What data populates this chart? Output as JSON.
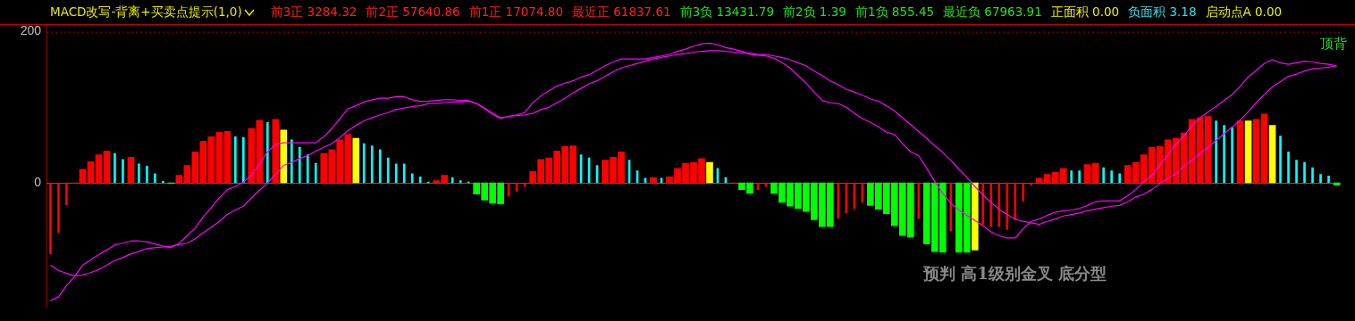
{
  "chart_data": {
    "type": "bar",
    "title": "MACD改写-背离+买卖点提示(1,0)",
    "annotations": [
      "前3正 3284.32",
      "前2正 57640.86",
      "前1正 17074.80",
      "最近正 61837.61",
      "前3负 13431.79",
      "前2负 1.39",
      "前1负 855.45",
      "最近负 67963.91",
      "正面积 0.00",
      "负面积 3.18",
      "启动点A 0.00",
      "顶背",
      "预判 高1级别金叉 底分型"
    ],
    "categories": [
      null,
      null,
      null,
      null,
      null,
      null,
      null,
      null,
      null,
      null,
      null,
      null,
      null,
      null,
      null,
      null,
      null,
      null,
      null,
      null,
      null,
      null,
      null,
      null,
      null,
      null,
      null,
      null,
      null,
      null,
      null,
      null,
      null,
      null,
      null,
      null,
      null,
      null,
      null,
      null,
      null,
      null,
      null,
      null,
      null,
      null,
      null,
      null,
      null,
      null,
      null,
      null,
      null,
      null,
      null,
      null,
      null,
      null,
      null,
      null,
      null,
      null,
      null,
      null,
      null,
      null,
      null,
      null,
      null,
      null,
      null,
      null,
      null,
      null,
      null,
      null,
      null,
      null,
      null,
      null,
      null,
      null,
      null,
      null,
      null,
      null,
      null,
      null,
      null,
      null,
      null,
      null,
      null,
      null,
      null,
      null,
      null,
      null,
      null,
      null,
      null,
      null,
      null,
      null,
      null,
      null,
      null,
      null,
      null,
      null,
      null,
      null,
      null,
      null,
      null,
      null,
      null,
      null,
      null,
      null,
      null,
      null,
      null,
      null,
      null,
      null,
      null,
      null,
      null,
      null,
      null,
      null,
      null,
      null,
      null,
      null,
      null,
      null,
      null,
      null,
      null,
      null,
      null,
      null,
      null,
      null,
      null,
      null,
      null,
      null,
      null,
      null,
      null,
      null,
      null,
      null,
      null,
      null,
      null,
      null,
      null
    ],
    "series": [
      {
        "values": [
          -94,
          -66,
          -29,
          0,
          18,
          28,
          37,
          42,
          39,
          31,
          34,
          25,
          22,
          12,
          2,
          -1,
          10,
          23,
          41,
          55,
          61,
          67,
          68,
          61,
          60,
          72,
          83,
          80,
          84,
          70,
          57,
          47,
          37,
          26,
          39,
          44,
          57,
          64,
          59,
          52,
          49,
          44,
          33,
          25,
          25,
          12,
          8,
          1,
          3,
          10,
          7,
          3,
          1,
          -15,
          -23,
          -27,
          -28,
          -18,
          -11,
          -5,
          15,
          31,
          33,
          42,
          48,
          49,
          37,
          33,
          23,
          30,
          34,
          41,
          30,
          16,
          6,
          7,
          6,
          8,
          19,
          26,
          27,
          32,
          27,
          19,
          7,
          0,
          -9,
          -14,
          -9,
          -5,
          -14,
          -26,
          -31,
          -34,
          -38,
          -49,
          -58,
          -58,
          -47,
          -40,
          -34,
          -26,
          -30,
          -35,
          -41,
          -57,
          -70,
          -72,
          -47,
          -81,
          -91,
          -92,
          -64,
          -92,
          -92,
          -89,
          -55,
          -58,
          -58,
          -62,
          -49,
          -24,
          -3,
          6,
          11,
          14,
          19,
          16,
          16,
          24,
          26,
          20,
          16,
          12,
          23,
          27,
          37,
          47,
          48,
          57,
          59,
          66,
          84,
          86,
          88,
          82,
          76,
          73,
          82,
          82,
          84,
          91,
          76,
          62,
          41,
          30,
          27,
          20,
          11,
          9,
          -3
        ],
        "colors": [
          "#ff0000",
          "#ff0000",
          "#ff0000",
          "#ff0000",
          "#ff0000",
          "#ff0000",
          "#ff0000",
          "#ff0000",
          "#00ffff",
          "#00ffff",
          "#ff0000",
          "#00ffff",
          "#00ffff",
          "#00ffff",
          "#00ffff",
          "#00ff00",
          "#ff0000",
          "#ff0000",
          "#ff0000",
          "#ff0000",
          "#ff0000",
          "#ff0000",
          "#ff0000",
          "#00ffff",
          "#00ffff",
          "#ff0000",
          "#ff0000",
          "#00ffff",
          "#ff0000",
          "#ffff00",
          "#00ffff",
          "#00ffff",
          "#00ffff",
          "#00ffff",
          "#ff0000",
          "#ff0000",
          "#ff0000",
          "#ff0000",
          "#ffff00",
          "#00ffff",
          "#00ffff",
          "#00ffff",
          "#00ffff",
          "#00ffff",
          "#00ffff",
          "#00ffff",
          "#00ffff",
          "#00ffff",
          "#ff0000",
          "#ff0000",
          "#00ffff",
          "#00ffff",
          "#00ffff",
          "#00ff00",
          "#00ff00",
          "#00ff00",
          "#00ff00",
          "#ff0000",
          "#ff0000",
          "#ff0000",
          "#ff0000",
          "#ff0000",
          "#ff0000",
          "#ff0000",
          "#ff0000",
          "#ff0000",
          "#00ffff",
          "#00ffff",
          "#00ffff",
          "#ff0000",
          "#ff0000",
          "#ff0000",
          "#00ffff",
          "#00ffff",
          "#00ffff",
          "#ff0000",
          "#00ffff",
          "#ff0000",
          "#ff0000",
          "#ff0000",
          "#ff0000",
          "#ff0000",
          "#ffff00",
          "#00ffff",
          "#00ffff",
          "#ff0000",
          "#00ff00",
          "#00ff00",
          "#ff0000",
          "#ff0000",
          "#00ff00",
          "#00ff00",
          "#00ff00",
          "#00ff00",
          "#00ff00",
          "#00ff00",
          "#00ff00",
          "#00ff00",
          "#ff0000",
          "#ff0000",
          "#ff0000",
          "#ff0000",
          "#00ff00",
          "#00ff00",
          "#00ff00",
          "#00ff00",
          "#00ff00",
          "#00ff00",
          "#ff0000",
          "#00ff00",
          "#00ff00",
          "#00ff00",
          "#ff0000",
          "#00ff00",
          "#00ff00",
          "#ffff00",
          "#ff0000",
          "#ff0000",
          "#ff0000",
          "#ff0000",
          "#ff0000",
          "#ff0000",
          "#ff0000",
          "#ff0000",
          "#ff0000",
          "#ff0000",
          "#ff0000",
          "#00ffff",
          "#00ffff",
          "#ff0000",
          "#ff0000",
          "#00ffff",
          "#00ffff",
          "#00ffff",
          "#ff0000",
          "#ff0000",
          "#ff0000",
          "#ff0000",
          "#ff0000",
          "#ff0000",
          "#ff0000",
          "#ff0000",
          "#ff0000",
          "#ff0000",
          "#ff0000",
          "#00ffff",
          "#00ffff",
          "#00ffff",
          "#ff0000",
          "#ffff00",
          "#ff0000",
          "#ff0000",
          "#ffff00",
          "#00ffff",
          "#00ffff",
          "#00ffff",
          "#00ffff",
          "#00ffff",
          "#00ffff",
          "#00ffff",
          "#00ff00"
        ]
      },
      {
        "type": "line",
        "color": "#ff00ff",
        "values": [
          -156,
          -151,
          -136,
          -124,
          -109,
          -102,
          -95,
          -89,
          -82,
          -80,
          -77,
          -77,
          -78,
          -81,
          -84,
          -86,
          -80,
          -70,
          -60,
          -45,
          -33,
          -20,
          -9,
          -5,
          1,
          10,
          25,
          41,
          51,
          53,
          53,
          53,
          53,
          53,
          61,
          72,
          85,
          98,
          102,
          107,
          110,
          112,
          112,
          114,
          114,
          110,
          108,
          108,
          109,
          110,
          110,
          109,
          109,
          105,
          98,
          91,
          85,
          88,
          90,
          93,
          106,
          115,
          122,
          128,
          132,
          135,
          140,
          143,
          149,
          155,
          160,
          164,
          164,
          164,
          164,
          166,
          168,
          170,
          174,
          177,
          181,
          184,
          185,
          183,
          179,
          177,
          174,
          170,
          169,
          168,
          165,
          159,
          152,
          142,
          132,
          120,
          109,
          106,
          105,
          100,
          92,
          85,
          80,
          74,
          67,
          64,
          52,
          41,
          36,
          19,
          2,
          -14,
          -27,
          -36,
          -43,
          -50,
          -57,
          -65,
          -70,
          -73,
          -73,
          -61,
          -51,
          -48,
          -43,
          -39,
          -37,
          -36,
          -34,
          -30,
          -25,
          -24,
          -24,
          -24,
          -17,
          -9,
          1,
          10,
          24,
          37,
          51,
          62,
          76,
          86,
          94,
          101,
          109,
          117,
          128,
          140,
          149,
          158,
          163,
          159,
          157,
          159,
          161,
          160,
          158,
          157,
          155
        ]
      },
      {
        "type": "line",
        "color": "#ff00ff",
        "values": [
          -109,
          -116,
          -120,
          -123,
          -122,
          -119,
          -115,
          -109,
          -103,
          -99,
          -94,
          -91,
          -87,
          -86,
          -85,
          -84,
          -82,
          -80,
          -74,
          -66,
          -59,
          -51,
          -42,
          -36,
          -31,
          -20,
          -10,
          0,
          11,
          23,
          27,
          32,
          36,
          42,
          47,
          52,
          60,
          69,
          76,
          82,
          86,
          90,
          93,
          97,
          99,
          101,
          102,
          105,
          105,
          106,
          107,
          107,
          108,
          105,
          99,
          92,
          86,
          88,
          89,
          90,
          92,
          97,
          100,
          106,
          112,
          119,
          125,
          131,
          135,
          141,
          147,
          152,
          155,
          158,
          161,
          164,
          166,
          168,
          170,
          171,
          173,
          174,
          175,
          175,
          174,
          173,
          172,
          172,
          170,
          170,
          168,
          166,
          163,
          159,
          155,
          148,
          142,
          135,
          130,
          124,
          120,
          116,
          111,
          108,
          102,
          95,
          86,
          77,
          68,
          59,
          49,
          40,
          30,
          18,
          7,
          -5,
          -16,
          -26,
          -35,
          -42,
          -48,
          -51,
          -53,
          -55,
          -51,
          -48,
          -44,
          -42,
          -40,
          -37,
          -35,
          -33,
          -31,
          -30,
          -25,
          -19,
          -15,
          -9,
          -1,
          6,
          12,
          22,
          30,
          39,
          47,
          56,
          65,
          74,
          83,
          94,
          106,
          117,
          127,
          134,
          141,
          144,
          148,
          151,
          152,
          153,
          155
        ]
      }
    ],
    "ylim": [
      -166,
      209
    ],
    "yticks": [
      0,
      200
    ],
    "ref_lines": [
      {
        "axis": "y",
        "value": 200,
        "color": "#b00000",
        "line_style": "dotted"
      },
      {
        "axis": "y",
        "value": 0,
        "color": "#ff2020",
        "line_style": "solid"
      }
    ],
    "legend": false,
    "tick_labels": "y"
  }
}
